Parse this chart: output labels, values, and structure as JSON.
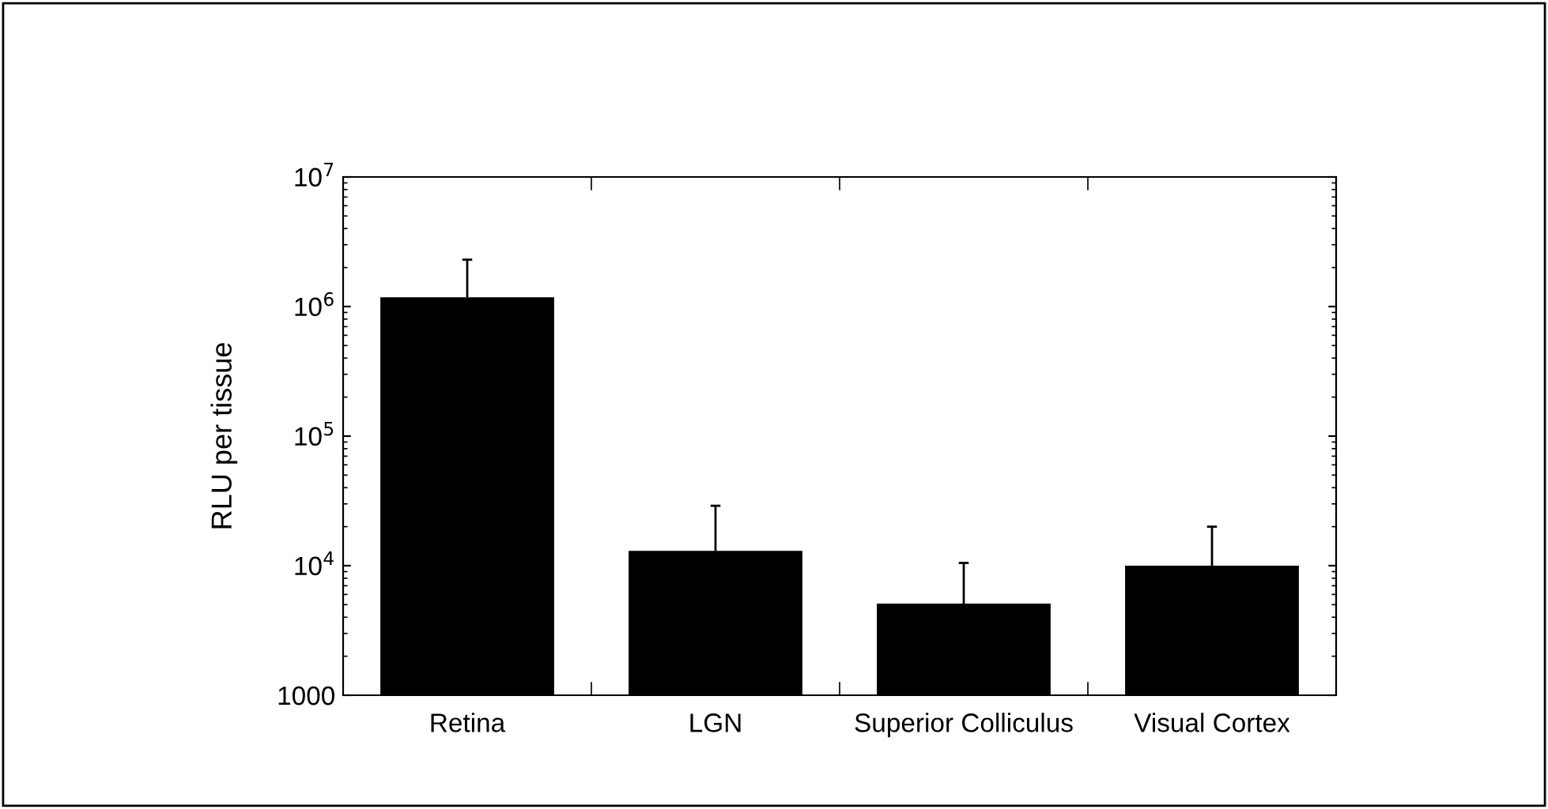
{
  "chart_data": {
    "type": "bar",
    "ylabel": "RLU per tissue",
    "categories": [
      "Retina",
      "LGN",
      "Superior Colliculus",
      "Visual Cortex"
    ],
    "values": [
      1180000,
      13000,
      5100,
      10000
    ],
    "errors": [
      [
        1180000,
        2300000
      ],
      [
        13000,
        29000
      ],
      [
        5100,
        10500
      ],
      [
        10000,
        20000
      ]
    ],
    "color": "#000000",
    "log": true,
    "ylim": [
      1000,
      10000000
    ],
    "yticks": [
      {
        "value": 1000,
        "label": "1000"
      },
      {
        "value": 10000,
        "label": "10$^{4}$"
      },
      {
        "value": 100000,
        "label": "10$^{5}$"
      },
      {
        "value": 1000000,
        "label": "10$^{6}$"
      },
      {
        "value": 10000000,
        "label": "10$^{7}$"
      }
    ],
    "grid": false,
    "legend": false
  }
}
